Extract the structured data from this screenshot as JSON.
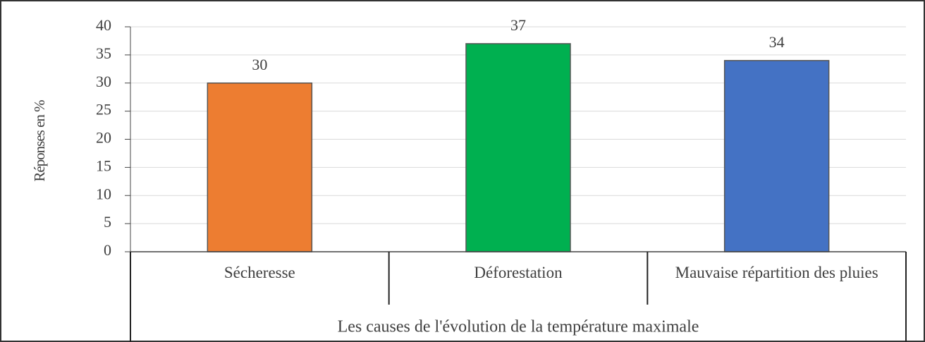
{
  "chart_data": {
    "type": "bar",
    "y_label": "Réponses en %",
    "x_label": "Les causes de l'évolution de la température maximale",
    "categories": [
      "Sécheresse",
      "Déforestation",
      "Mauvaise répartition des pluies"
    ],
    "values": [
      30,
      37,
      34
    ],
    "colors": [
      "#ed7d31",
      "#00b050",
      "#4472c4"
    ],
    "ylim": [
      0,
      40
    ],
    "yticks": [
      0,
      5,
      10,
      15,
      20,
      25,
      30,
      35,
      40
    ],
    "grid": true
  }
}
